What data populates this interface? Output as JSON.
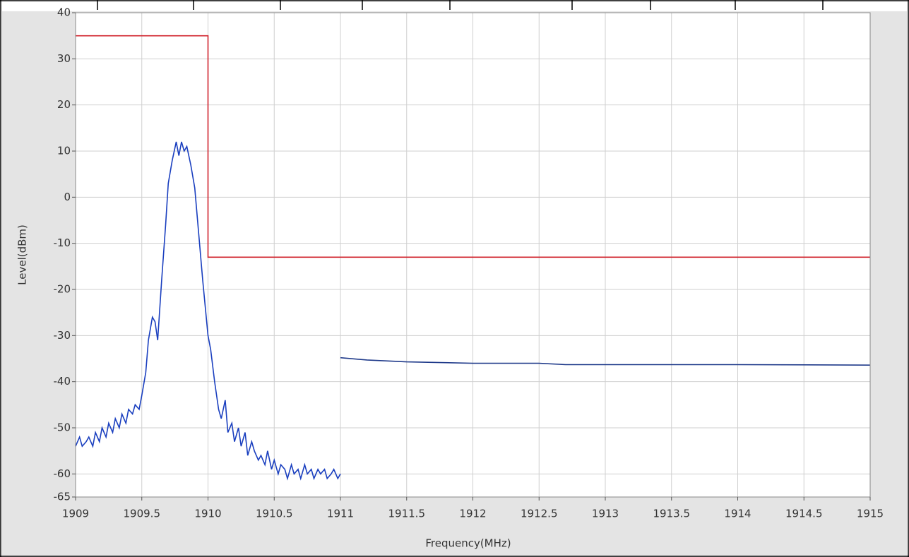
{
  "chart_data": {
    "type": "line",
    "xlabel": "Frequency(MHz)",
    "ylabel": "Level(dBm)",
    "xlim": [
      1909,
      1915
    ],
    "xticks": [
      1909,
      1909.5,
      1910,
      1910.5,
      1911,
      1911.5,
      1912,
      1912.5,
      1913,
      1913.5,
      1914,
      1914.5,
      1915
    ],
    "ylim": [
      -65,
      40
    ],
    "yticks": [
      -65,
      -60,
      -50,
      -40,
      -30,
      -20,
      -10,
      0,
      10,
      20,
      30,
      40
    ],
    "grid": true,
    "series": [
      {
        "color": "#d0202a",
        "x": [
          1909,
          1910,
          1910,
          1915
        ],
        "values": [
          35,
          35,
          -13,
          -13
        ]
      },
      {
        "color": "#1a3fbf",
        "x": [
          1909.0,
          1909.03,
          1909.05,
          1909.08,
          1909.1,
          1909.13,
          1909.15,
          1909.18,
          1909.2,
          1909.23,
          1909.25,
          1909.28,
          1909.3,
          1909.33,
          1909.35,
          1909.38,
          1909.4,
          1909.43,
          1909.45,
          1909.48,
          1909.5,
          1909.53,
          1909.55,
          1909.58,
          1909.6,
          1909.62,
          1909.65,
          1909.68,
          1909.7,
          1909.73,
          1909.76,
          1909.78,
          1909.8,
          1909.82,
          1909.84,
          1909.87,
          1909.9,
          1909.93,
          1909.96,
          1910.0,
          1910.02,
          1910.05,
          1910.08,
          1910.1,
          1910.13,
          1910.15,
          1910.18,
          1910.2,
          1910.23,
          1910.25,
          1910.28,
          1910.3,
          1910.33,
          1910.35,
          1910.38,
          1910.4,
          1910.43,
          1910.45,
          1910.48,
          1910.5,
          1910.53,
          1910.55,
          1910.58,
          1910.6,
          1910.63,
          1910.65,
          1910.68,
          1910.7,
          1910.73,
          1910.75,
          1910.78,
          1910.8,
          1910.83,
          1910.85,
          1910.88,
          1910.9,
          1910.93,
          1910.95,
          1910.98,
          1911.0
        ],
        "values": [
          -54,
          -52,
          -54,
          -53,
          -52,
          -54,
          -51,
          -53,
          -50,
          -52,
          -49,
          -51,
          -48,
          -50,
          -47,
          -49,
          -46,
          -47,
          -45,
          -46,
          -43,
          -38,
          -31,
          -26,
          -27,
          -31,
          -18,
          -6,
          3,
          8,
          12,
          9,
          12,
          10,
          11,
          7,
          2,
          -8,
          -18,
          -30,
          -33,
          -40,
          -46,
          -48,
          -44,
          -51,
          -49,
          -53,
          -50,
          -54,
          -51,
          -56,
          -53,
          -55,
          -57,
          -56,
          -58,
          -55,
          -59,
          -57,
          -60,
          -58,
          -59,
          -61,
          -58,
          -60,
          -59,
          -61,
          -58,
          -60,
          -59,
          -61,
          -59,
          -60,
          -59,
          -61,
          -60,
          -59,
          -61,
          -60
        ]
      },
      {
        "color": "#1f3a8a",
        "x": [
          1911,
          1911.2,
          1911.5,
          1912,
          1912.5,
          1912.7,
          1913,
          1914,
          1915
        ],
        "values": [
          -34.8,
          -35.3,
          -35.7,
          -36,
          -36,
          -36.3,
          -36.3,
          -36.3,
          -36.4
        ]
      }
    ]
  }
}
